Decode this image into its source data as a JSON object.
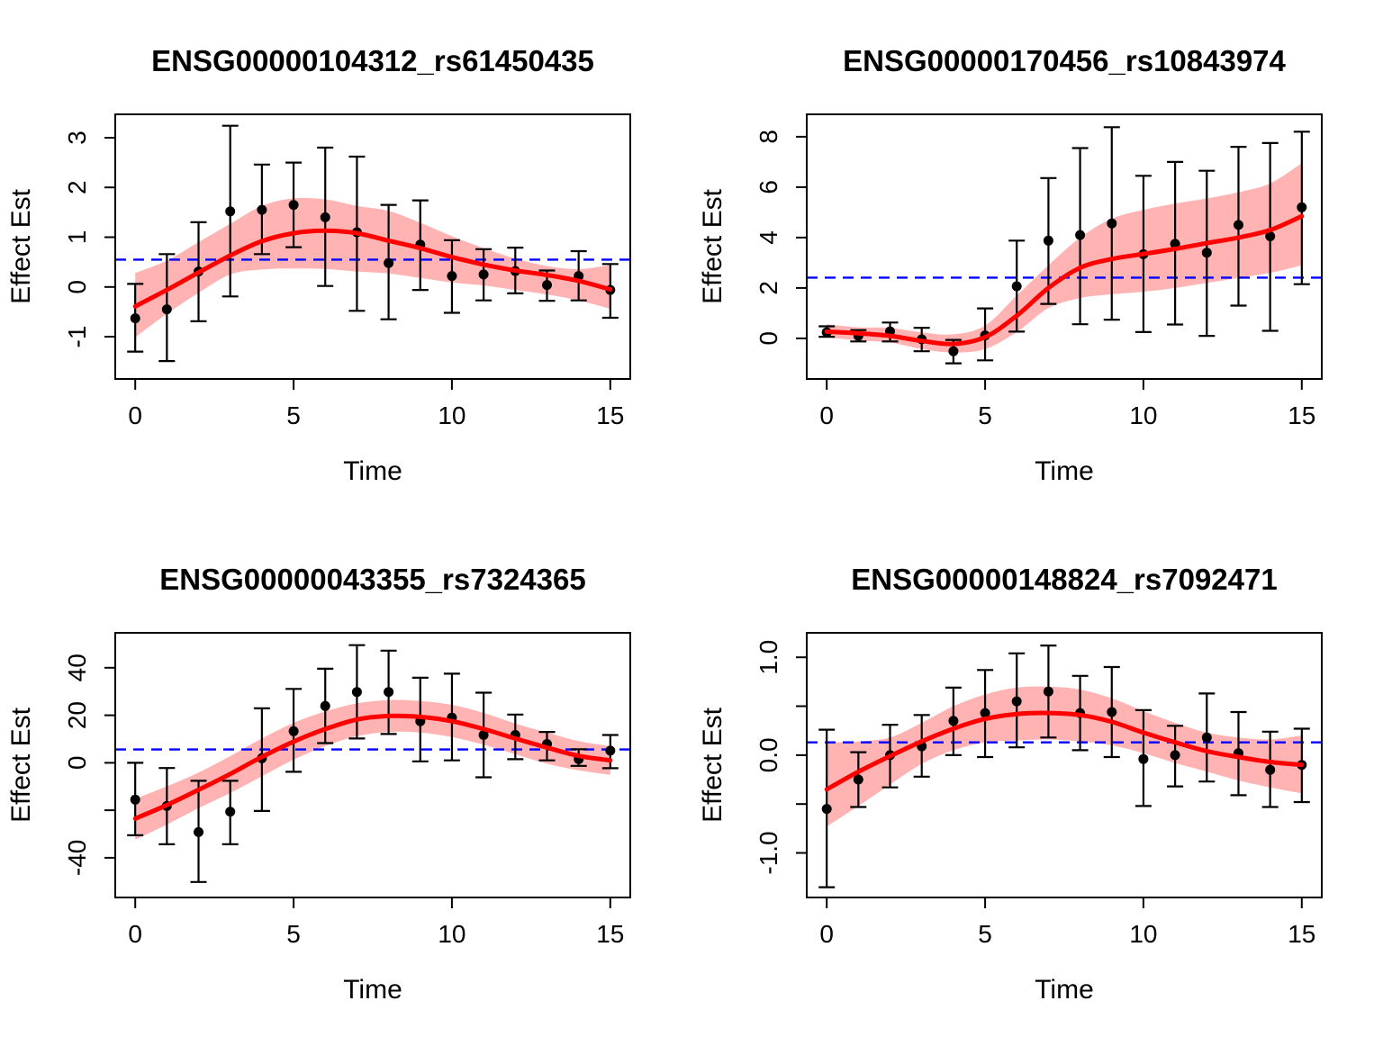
{
  "figure": {
    "background": "#ffffff"
  },
  "colors": {
    "fit_line": "#ff0000",
    "confidence_band": "#ffb3b3",
    "reference_line": "#0000ff",
    "point": "#000000",
    "axis": "#000000"
  },
  "chart_data": [
    {
      "type": "line",
      "title": "ENSG00000104312_rs61450435",
      "xlabel": "Time",
      "ylabel": "Effect Est",
      "xlim": [
        -0.63,
        15.63
      ],
      "ylim": [
        -1.85,
        3.47
      ],
      "xticks": [
        0,
        5,
        10,
        15
      ],
      "yticks": [
        -1,
        0,
        1,
        2,
        3
      ],
      "ytick_labels": [
        "-1",
        "0",
        "1",
        "2",
        "3"
      ],
      "hline": 0.55,
      "x": [
        0,
        1,
        2,
        3,
        4,
        5,
        6,
        7,
        8,
        9,
        10,
        11,
        12,
        13,
        14,
        15
      ],
      "points": [
        -0.63,
        -0.45,
        0.31,
        1.52,
        1.55,
        1.65,
        1.4,
        1.1,
        0.48,
        0.85,
        0.22,
        0.25,
        0.32,
        0.04,
        0.22,
        -0.06
      ],
      "ci_lower": [
        -1.3,
        -1.49,
        -0.69,
        -0.19,
        0.66,
        0.8,
        0.02,
        -0.48,
        -0.65,
        -0.06,
        -0.52,
        -0.27,
        -0.13,
        -0.28,
        -0.27,
        -0.62
      ],
      "ci_upper": [
        0.06,
        0.66,
        1.3,
        3.24,
        2.46,
        2.5,
        2.8,
        2.62,
        1.65,
        1.74,
        0.94,
        0.76,
        0.79,
        0.33,
        0.72,
        0.46
      ],
      "fit": [
        -0.39,
        -0.06,
        0.29,
        0.63,
        0.92,
        1.08,
        1.13,
        1.08,
        0.93,
        0.78,
        0.6,
        0.45,
        0.33,
        0.24,
        0.12,
        -0.05
      ],
      "band_lower": [
        -1.01,
        -0.54,
        -0.12,
        0.25,
        0.35,
        0.37,
        0.36,
        0.31,
        0.27,
        0.18,
        0.09,
        0.03,
        -0.06,
        -0.15,
        -0.27,
        -0.44
      ],
      "band_upper": [
        0.28,
        0.53,
        0.9,
        1.27,
        1.63,
        1.78,
        1.76,
        1.63,
        1.53,
        1.29,
        1.02,
        0.78,
        0.57,
        0.42,
        0.36,
        0.44
      ]
    },
    {
      "type": "line",
      "title": "ENSG00000170456_rs10843974",
      "xlabel": "Time",
      "ylabel": "Effect Est",
      "xlim": [
        -0.63,
        15.63
      ],
      "ylim": [
        -1.61,
        8.89
      ],
      "xticks": [
        0,
        5,
        10,
        15
      ],
      "yticks": [
        0,
        2,
        4,
        6,
        8
      ],
      "ytick_labels": [
        "0",
        "2",
        "4",
        "6",
        "8"
      ],
      "hline": 2.41,
      "x": [
        0,
        1,
        2,
        3,
        4,
        5,
        6,
        7,
        8,
        9,
        10,
        11,
        12,
        13,
        14,
        15
      ],
      "points": [
        0.24,
        0.1,
        0.28,
        -0.04,
        -0.51,
        0.12,
        2.07,
        3.88,
        4.1,
        4.56,
        3.34,
        3.75,
        3.4,
        4.5,
        4.05,
        5.2
      ],
      "ci_lower": [
        0.06,
        -0.12,
        -0.12,
        -0.51,
        -0.99,
        -0.87,
        0.27,
        1.37,
        0.56,
        0.74,
        0.25,
        0.55,
        0.1,
        1.3,
        0.3,
        2.15
      ],
      "ci_upper": [
        0.48,
        0.33,
        0.63,
        0.42,
        -0.06,
        1.19,
        3.88,
        6.36,
        7.55,
        8.38,
        6.45,
        7.0,
        6.65,
        7.6,
        7.75,
        8.2
      ],
      "fit": [
        0.27,
        0.2,
        0.1,
        -0.1,
        -0.22,
        0.05,
        0.9,
        2.0,
        2.8,
        3.15,
        3.35,
        3.55,
        3.78,
        4.0,
        4.3,
        4.85
      ],
      "band_lower": [
        0.04,
        -0.08,
        -0.16,
        -0.42,
        -0.56,
        -0.42,
        0.25,
        1.2,
        1.6,
        1.75,
        1.85,
        2.0,
        2.2,
        2.4,
        2.6,
        2.9
      ],
      "band_upper": [
        0.56,
        0.44,
        0.42,
        0.24,
        0.16,
        0.51,
        1.7,
        2.9,
        4.0,
        4.75,
        5.1,
        5.35,
        5.55,
        5.8,
        6.15,
        6.95
      ]
    },
    {
      "type": "line",
      "title": "ENSG00000043355_rs7324365",
      "xlabel": "Time",
      "ylabel": "Effect Est",
      "xlim": [
        -0.63,
        15.63
      ],
      "ylim": [
        -56.7,
        54.7
      ],
      "xticks": [
        0,
        5,
        10,
        15
      ],
      "yticks": [
        -40,
        -20,
        0,
        20,
        40
      ],
      "ytick_labels": [
        "-40",
        "",
        "0",
        "20",
        "40"
      ],
      "hline": 5.6,
      "x": [
        0,
        1,
        2,
        3,
        4,
        5,
        6,
        7,
        8,
        9,
        10,
        11,
        12,
        13,
        14,
        15
      ],
      "points": [
        -15.5,
        -18.2,
        -29.2,
        -20.6,
        1.9,
        13.3,
        23.9,
        29.8,
        29.8,
        17.5,
        19.0,
        11.7,
        11.7,
        7.9,
        1.5,
        5.1
      ],
      "ci_lower": [
        -30.5,
        -34.3,
        -50.2,
        -34.3,
        -20.3,
        -3.8,
        8.3,
        10.2,
        12.1,
        0.6,
        1.0,
        -6.1,
        1.5,
        1.0,
        -1.3,
        -2.3
      ],
      "ci_upper": [
        0.0,
        -2.2,
        -7.6,
        -7.6,
        22.9,
        31.1,
        39.6,
        49.5,
        47.2,
        35.8,
        37.5,
        29.5,
        20.3,
        13.0,
        5.7,
        11.7
      ],
      "fit": [
        -23.5,
        -17.8,
        -11.4,
        -4.7,
        2.5,
        8.9,
        14.2,
        18.2,
        19.7,
        19.3,
        17.5,
        14.2,
        10.2,
        6.4,
        2.9,
        1.0
      ],
      "band_lower": [
        -32.4,
        -26.0,
        -19.1,
        -12.7,
        -5.7,
        1.3,
        7.0,
        11.2,
        13.0,
        12.7,
        10.8,
        7.6,
        3.6,
        -0.4,
        -3.2,
        -5.1
      ],
      "band_upper": [
        -15.2,
        -9.9,
        -4.1,
        2.8,
        10.2,
        16.8,
        21.6,
        25.0,
        26.4,
        26.0,
        24.4,
        21.0,
        16.5,
        12.7,
        9.1,
        7.0
      ]
    },
    {
      "type": "line",
      "title": "ENSG00000148824_rs7092471",
      "xlabel": "Time",
      "ylabel": "Effect Est",
      "xlim": [
        -0.63,
        15.63
      ],
      "ylim": [
        -1.455,
        1.25
      ],
      "xticks": [
        0,
        5,
        10,
        15
      ],
      "yticks": [
        -1.0,
        -0.5,
        0.0,
        0.5,
        1.0
      ],
      "ytick_labels": [
        "-1.0",
        "",
        "0.0",
        "",
        "1.0"
      ],
      "hline": 0.13,
      "x": [
        0,
        1,
        2,
        3,
        4,
        5,
        6,
        7,
        8,
        9,
        10,
        11,
        12,
        13,
        14,
        15
      ],
      "points": [
        -0.55,
        -0.25,
        0.0,
        0.09,
        0.35,
        0.43,
        0.55,
        0.65,
        0.43,
        0.44,
        -0.04,
        0.0,
        0.18,
        0.02,
        -0.15,
        -0.1
      ],
      "ci_lower": [
        -1.35,
        -0.53,
        -0.33,
        -0.22,
        0.0,
        -0.02,
        0.08,
        0.18,
        0.05,
        -0.02,
        -0.52,
        -0.32,
        -0.27,
        -0.41,
        -0.53,
        -0.48
      ],
      "ci_upper": [
        0.26,
        0.03,
        0.31,
        0.41,
        0.69,
        0.87,
        1.04,
        1.12,
        0.81,
        0.9,
        0.46,
        0.3,
        0.63,
        0.44,
        0.24,
        0.27
      ],
      "fit": [
        -0.35,
        -0.17,
        -0.01,
        0.14,
        0.27,
        0.37,
        0.42,
        0.43,
        0.41,
        0.34,
        0.23,
        0.13,
        0.04,
        -0.02,
        -0.07,
        -0.1
      ],
      "band_lower": [
        -0.73,
        -0.52,
        -0.3,
        -0.09,
        0.05,
        0.13,
        0.15,
        0.16,
        0.14,
        0.1,
        0.02,
        -0.08,
        -0.17,
        -0.26,
        -0.33,
        -0.39
      ],
      "band_upper": [
        0.13,
        0.14,
        0.18,
        0.33,
        0.5,
        0.62,
        0.69,
        0.7,
        0.67,
        0.58,
        0.45,
        0.33,
        0.23,
        0.18,
        0.16,
        0.2
      ]
    }
  ]
}
